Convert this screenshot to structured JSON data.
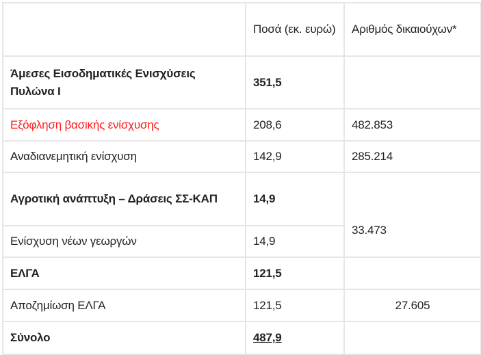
{
  "table": {
    "header": [
      "",
      "Ποσά (εκ. ευρώ)",
      "Αριθμός δικαιούχων*"
    ],
    "rows": [
      {
        "label": "Άμεσες Εισοδηματικές Ενισχύσεις Πυλώνα Ι",
        "amount": "351,5",
        "beneficiaries": ""
      },
      {
        "label": "Εξόφληση βασικής ενίσχυσης",
        "amount": "208,6",
        "beneficiaries": "482.853"
      },
      {
        "label": "Αναδιανεμητική ενίσχυση",
        "amount": "142,9",
        "beneficiaries": "285.214"
      },
      {
        "label": "Αγροτική ανάπτυξη – Δράσεις ΣΣ-ΚΑΠ",
        "amount": "14,9",
        "beneficiaries": "33.473"
      },
      {
        "label": "Ενίσχυση νέων γεωργών",
        "amount": "14,9"
      },
      {
        "label": "ΕΛΓΑ",
        "amount": "121,5",
        "beneficiaries": ""
      },
      {
        "label": "Αποζημίωση ΕΛΓΑ",
        "amount": "121,5",
        "beneficiaries": "27.605"
      },
      {
        "label": "Σύνολο",
        "amount": "487,9",
        "beneficiaries": ""
      }
    ]
  },
  "colors": {
    "highlight_text": "#ff1a1a",
    "border": "#e6e6e6"
  }
}
